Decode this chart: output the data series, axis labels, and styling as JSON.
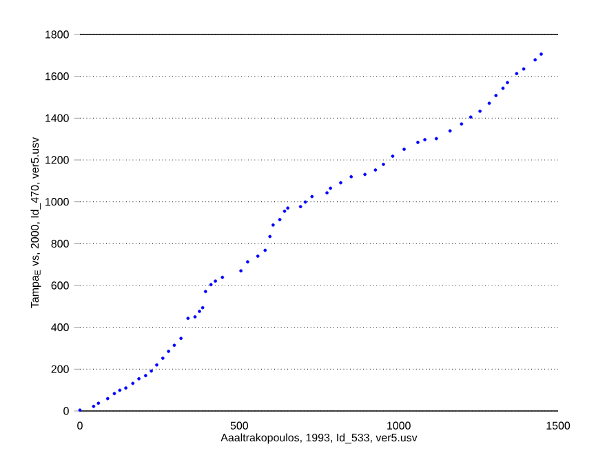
{
  "chart_data": {
    "type": "scatter",
    "xlabel": "Aaaltrakopoulos, 1993, Id_533, ver5.usv",
    "ylabel": "Tampa$_{E}$ vs, 2000, Id_470, ver5.usv",
    "xlim": [
      0,
      1500
    ],
    "xticks": [
      0,
      500,
      1000,
      1500
    ],
    "ylim": [
      0,
      1800
    ],
    "yticks": [
      0,
      200,
      400,
      600,
      800,
      1000,
      1200,
      1400,
      1600,
      1800
    ],
    "grid": "y",
    "series": [
      {
        "color": "#0000ff",
        "x": [
          0,
          43,
          58,
          87,
          108,
          125,
          144,
          166,
          185,
          206,
          224,
          241,
          260,
          278,
          296,
          317,
          339,
          361,
          375,
          385,
          394,
          411,
          425,
          447,
          505,
          526,
          558,
          581,
          596,
          606,
          627,
          642,
          652,
          692,
          707,
          728,
          775,
          786,
          818,
          851,
          894,
          927,
          952,
          981,
          1017,
          1060,
          1082,
          1118,
          1161,
          1197,
          1226,
          1255,
          1284,
          1305,
          1327,
          1341,
          1370,
          1392,
          1428,
          1447
        ],
        "values": [
          4,
          22,
          37,
          59,
          83,
          99,
          110,
          132,
          154,
          169,
          191,
          220,
          252,
          285,
          314,
          347,
          443,
          450,
          476,
          494,
          571,
          604,
          621,
          639,
          670,
          713,
          740,
          768,
          834,
          889,
          915,
          955,
          970,
          977,
          999,
          1025,
          1043,
          1065,
          1091,
          1120,
          1131,
          1152,
          1179,
          1218,
          1251,
          1284,
          1297,
          1302,
          1339,
          1372,
          1405,
          1433,
          1471,
          1508,
          1543,
          1570,
          1613,
          1635,
          1679,
          1706
        ]
      }
    ]
  }
}
